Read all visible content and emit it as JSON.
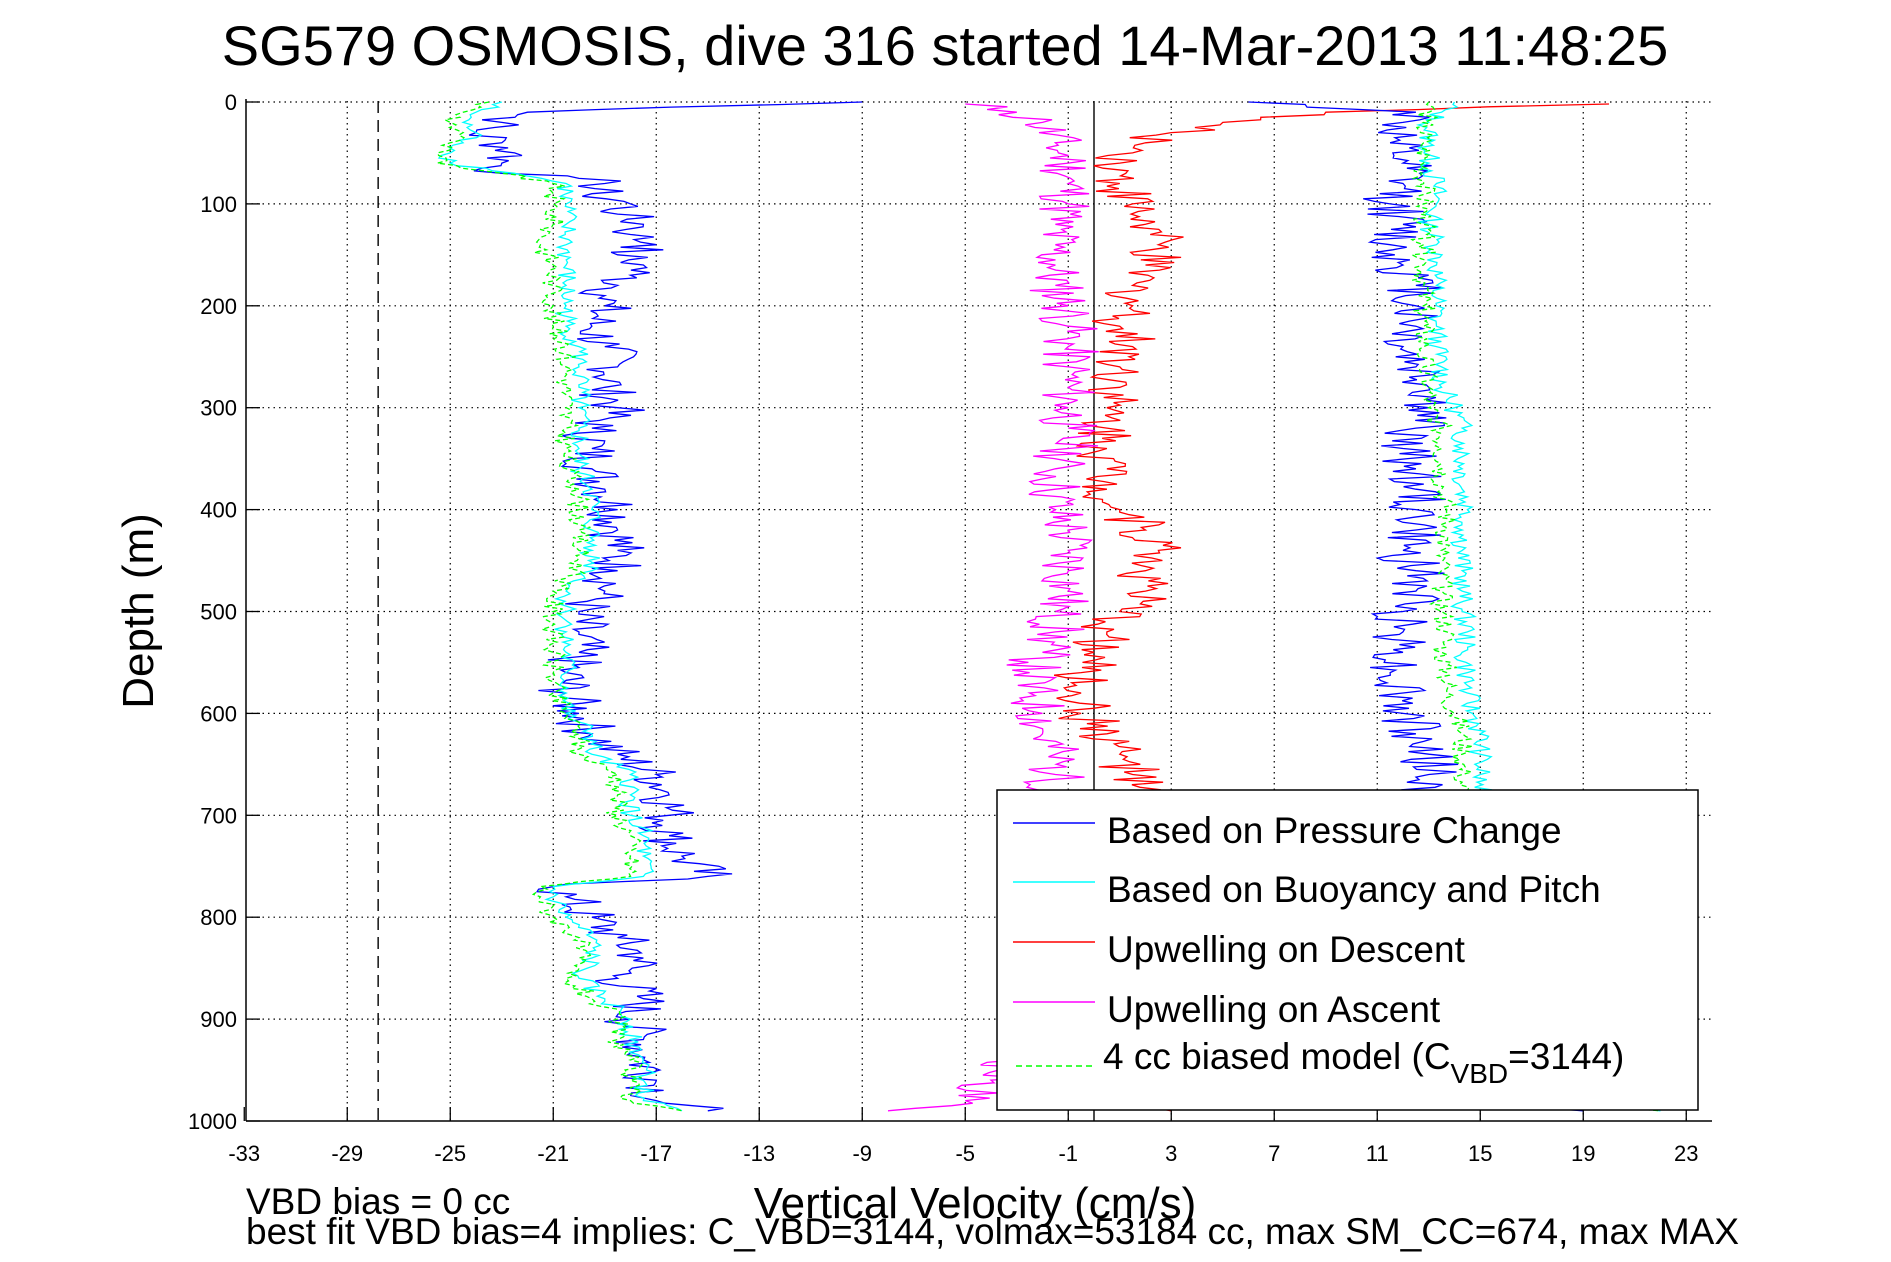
{
  "chart_data": {
    "type": "line",
    "title": "SG579 OSMOSIS, dive 316 started 14-Mar-2013 11:48:25",
    "xlabel": "Vertical Velocity (cm/s)",
    "ylabel": "Depth (m)",
    "xlim": [
      -33,
      24
    ],
    "ylim": [
      0,
      1000
    ],
    "y_reversed": true,
    "grid": true,
    "xticks": [
      -33,
      -29,
      -25,
      -21,
      -17,
      -13,
      -9,
      -5,
      -1,
      3,
      7,
      11,
      15,
      19,
      23
    ],
    "xtick_labels": [
      "-33",
      "-29",
      "-25",
      "-21",
      "-17",
      "-13",
      "-9",
      "-5",
      "-1",
      "3",
      "7",
      "11",
      "15",
      "19",
      "23"
    ],
    "yticks": [
      0,
      100,
      200,
      300,
      400,
      500,
      600,
      700,
      800,
      900,
      1000
    ],
    "ytick_labels": [
      "0",
      "100",
      "200",
      "300",
      "400",
      "500",
      "600",
      "700",
      "800",
      "900",
      "1000"
    ],
    "reference_lines": [
      {
        "name": "zero-line",
        "x": 0,
        "style": "solid"
      },
      {
        "name": "vbd-bias-line",
        "x": -27.8,
        "style": "dashed"
      }
    ],
    "legend": {
      "placement": "bottom-right",
      "entries": [
        {
          "label": "Based on Pressure Change",
          "color": "#0000ff",
          "style": "solid"
        },
        {
          "label": "Based on Buoyancy and Pitch",
          "color": "#00ffff",
          "style": "solid"
        },
        {
          "label": "Upwelling on Descent",
          "color": "#ff0000",
          "style": "solid"
        },
        {
          "label": "Upwelling on Ascent",
          "color": "#ff00ff",
          "style": "solid"
        },
        {
          "label_prefix": "4 cc biased model (C",
          "label_sub": "VBD",
          "label_suffix": "=3144)",
          "color": "#00ff00",
          "style": "dashed"
        }
      ]
    },
    "series": [
      {
        "name": "Based on Pressure Change (descent)",
        "color": "#0000ff",
        "depth": [
          0,
          10,
          20,
          30,
          40,
          50,
          60,
          70,
          75,
          80,
          90,
          100,
          110,
          120,
          130,
          140,
          150,
          160,
          170,
          180,
          190,
          200,
          220,
          240,
          260,
          280,
          300,
          320,
          340,
          360,
          380,
          400,
          420,
          440,
          460,
          480,
          500,
          520,
          540,
          560,
          580,
          600,
          620,
          640,
          660,
          680,
          700,
          720,
          740,
          760,
          770,
          780,
          800,
          820,
          840,
          860,
          880,
          900,
          920,
          940,
          960,
          980,
          990
        ],
        "velocity": [
          -9,
          -22,
          -23,
          -24,
          -23,
          -22.5,
          -23,
          -23,
          -20,
          -19,
          -19.5,
          -18,
          -18.5,
          -17.5,
          -18,
          -17,
          -18.5,
          -17.5,
          -18,
          -18.5,
          -19,
          -19,
          -19.5,
          -19,
          -18.5,
          -19,
          -18.5,
          -19.5,
          -19.5,
          -19.5,
          -19,
          -18.5,
          -18.5,
          -18.5,
          -18.5,
          -19,
          -20,
          -20,
          -20,
          -20.5,
          -20.5,
          -20,
          -19.5,
          -18.5,
          -17,
          -16.5,
          -16.5,
          -16.5,
          -16,
          -15,
          -21,
          -20.5,
          -19.5,
          -18.5,
          -17.5,
          -18.5,
          -17.5,
          -18,
          -17.5,
          -17.5,
          -17,
          -17,
          -15
        ]
      },
      {
        "name": "Based on Buoyancy and Pitch (descent)",
        "color": "#00ffff",
        "depth": [
          0,
          10,
          20,
          30,
          40,
          50,
          60,
          70,
          80,
          90,
          100,
          120,
          140,
          160,
          180,
          200,
          220,
          240,
          260,
          280,
          300,
          320,
          340,
          360,
          380,
          400,
          420,
          440,
          460,
          480,
          500,
          520,
          540,
          560,
          580,
          600,
          620,
          640,
          660,
          680,
          700,
          720,
          740,
          760,
          770,
          780,
          800,
          820,
          840,
          860,
          880,
          900,
          920,
          940,
          960,
          980,
          990
        ],
        "velocity": [
          -23,
          -24,
          -24.5,
          -24,
          -24.5,
          -25,
          -25,
          -22.5,
          -20.5,
          -20.5,
          -20.5,
          -20.5,
          -20.5,
          -20.5,
          -20.5,
          -20.5,
          -20.5,
          -20,
          -20,
          -20,
          -20,
          -20,
          -20,
          -20,
          -19.5,
          -19.5,
          -19.5,
          -19.5,
          -19.5,
          -20.5,
          -20.5,
          -20.5,
          -20.5,
          -20.5,
          -20.5,
          -20.5,
          -19.5,
          -19.5,
          -18,
          -18,
          -18,
          -17.5,
          -17.5,
          -17.5,
          -21,
          -21,
          -20.5,
          -19.5,
          -19.5,
          -20,
          -19,
          -18,
          -18,
          -17.5,
          -17.5,
          -17.5,
          -16
        ]
      },
      {
        "name": "4 cc biased model (descent)",
        "color": "#00ff00",
        "style": "dashed",
        "depth": [
          0,
          10,
          20,
          30,
          40,
          50,
          60,
          70,
          80,
          90,
          100,
          120,
          140,
          160,
          180,
          200,
          220,
          240,
          260,
          280,
          300,
          320,
          340,
          360,
          380,
          400,
          420,
          440,
          460,
          480,
          500,
          520,
          540,
          560,
          580,
          600,
          620,
          640,
          660,
          680,
          700,
          720,
          740,
          760,
          770,
          780,
          800,
          820,
          840,
          860,
          880,
          900,
          920,
          940,
          960,
          980,
          990
        ],
        "velocity": [
          -23.5,
          -24.5,
          -25,
          -24.5,
          -25,
          -25.5,
          -25.5,
          -23,
          -21,
          -21,
          -21,
          -21,
          -21.5,
          -21,
          -21,
          -21,
          -21,
          -20.5,
          -20.5,
          -20.5,
          -20.5,
          -20.5,
          -20.5,
          -20.5,
          -20,
          -20,
          -20,
          -20,
          -20,
          -21,
          -21,
          -21,
          -21,
          -21,
          -21,
          -20.5,
          -20,
          -20,
          -18.5,
          -18.5,
          -18.5,
          -18,
          -18,
          -18,
          -21.5,
          -21.5,
          -21,
          -20,
          -20,
          -20.5,
          -19.5,
          -18.5,
          -18.5,
          -18,
          -18,
          -18,
          -16
        ]
      },
      {
        "name": "Upwelling on Descent",
        "color": "#ff0000",
        "depth": [
          2,
          10,
          20,
          30,
          40,
          50,
          60,
          80,
          100,
          120,
          140,
          160,
          180,
          200,
          220,
          240,
          260,
          280,
          300,
          320,
          340,
          360,
          380,
          400,
          420,
          440,
          460,
          480,
          500,
          520,
          540,
          560,
          580,
          600,
          620,
          640,
          660,
          680,
          700,
          720,
          740,
          760,
          780,
          800,
          820,
          840,
          860,
          880,
          900,
          920,
          940,
          960,
          980,
          990
        ],
        "velocity": [
          20,
          9,
          5,
          3,
          2,
          1.5,
          1,
          1,
          1.5,
          2,
          2.5,
          2,
          1.5,
          1.5,
          1,
          1.5,
          1,
          1,
          0.5,
          0.5,
          0.5,
          0.5,
          0.5,
          1,
          2,
          2.5,
          2,
          2,
          1,
          0.5,
          0,
          -0.5,
          -0.5,
          -0.5,
          0.5,
          1,
          1.5,
          1.5,
          2,
          1.5,
          1,
          1,
          0.5,
          0,
          0.5,
          0.5,
          0.5,
          0,
          -0.5,
          0.5,
          0.5,
          1,
          2.5,
          3
        ]
      },
      {
        "name": "Upwelling on Ascent",
        "color": "#ff00ff",
        "depth": [
          2,
          10,
          20,
          40,
          60,
          80,
          100,
          120,
          140,
          160,
          180,
          200,
          220,
          240,
          260,
          280,
          300,
          320,
          340,
          360,
          380,
          400,
          420,
          440,
          460,
          480,
          500,
          520,
          540,
          560,
          580,
          600,
          620,
          640,
          660,
          680,
          700,
          720,
          740,
          760,
          780,
          800,
          820,
          840,
          860,
          880,
          900,
          920,
          940,
          960,
          980,
          990
        ],
        "velocity": [
          -5,
          -3,
          -2,
          -1.5,
          -1,
          -1,
          -1,
          -1.5,
          -1.5,
          -1.5,
          -1.5,
          -1,
          -1,
          -1,
          -1,
          -1,
          -1,
          -1,
          -1,
          -1.5,
          -1.5,
          -1.5,
          -1,
          -1,
          -1,
          -1,
          -1.5,
          -1.5,
          -2,
          -2.5,
          -2.5,
          -2,
          -2,
          -1.5,
          -1.5,
          -1.5,
          -2,
          -2,
          -1.5,
          -1.5,
          -1.5,
          -2,
          -1.5,
          -1.5,
          -2,
          -1.5,
          -1.5,
          -2,
          -3,
          -4,
          -5,
          -8
        ]
      },
      {
        "name": "Based on Pressure Change (ascent)",
        "color": "#0000ff",
        "depth": [
          0,
          10,
          20,
          40,
          60,
          80,
          100,
          120,
          140,
          160,
          180,
          200,
          220,
          240,
          260,
          280,
          300,
          320,
          340,
          360,
          380,
          400,
          420,
          440,
          460,
          480,
          500,
          520,
          540,
          560,
          580,
          600,
          620,
          640,
          660,
          680,
          700,
          720,
          740,
          760,
          780,
          800,
          820,
          840,
          860,
          880,
          900,
          920,
          940,
          960,
          980,
          990
        ],
        "velocity": [
          6,
          12.5,
          12,
          11.5,
          12,
          12,
          11.5,
          12,
          11.5,
          12,
          12.5,
          12.5,
          12.5,
          12,
          12.5,
          13,
          13,
          12.5,
          12,
          12.5,
          12.5,
          12.5,
          12.5,
          12,
          12.5,
          12.5,
          12,
          12,
          12,
          11.5,
          12,
          12,
          12.5,
          13,
          13,
          12.5,
          12.5,
          12.5,
          12,
          12,
          12,
          12,
          12.5,
          12.5,
          12.5,
          12,
          12,
          12.5,
          13,
          14,
          16,
          19
        ]
      },
      {
        "name": "Based on Buoyancy and Pitch (ascent)",
        "color": "#00ffff",
        "depth": [
          0,
          10,
          20,
          40,
          60,
          80,
          100,
          120,
          140,
          160,
          180,
          200,
          220,
          240,
          260,
          280,
          300,
          320,
          340,
          360,
          380,
          400,
          420,
          440,
          460,
          480,
          500,
          520,
          540,
          560,
          580,
          600,
          620,
          640,
          660,
          680,
          700,
          720,
          740,
          760,
          780,
          800,
          820,
          840,
          860,
          880,
          900,
          920,
          940,
          960,
          980,
          990
        ],
        "velocity": [
          14,
          13.5,
          13,
          13,
          13,
          13.3,
          13.3,
          13,
          13.3,
          13.3,
          13.3,
          13.3,
          13.3,
          13.3,
          13.5,
          13.5,
          14,
          14.3,
          14.3,
          14.3,
          14.3,
          14.5,
          14.3,
          14.3,
          14.3,
          14.3,
          14.3,
          14.5,
          14.3,
          14.5,
          14.5,
          14.7,
          15,
          15,
          15,
          15,
          15,
          15,
          15,
          15,
          15,
          15,
          15,
          15,
          15,
          15,
          15,
          15,
          15,
          15.5,
          17,
          22
        ]
      },
      {
        "name": "4 cc biased model (ascent)",
        "color": "#00ff00",
        "style": "dashed",
        "depth": [
          0,
          10,
          20,
          40,
          60,
          80,
          100,
          120,
          140,
          160,
          180,
          200,
          220,
          240,
          260,
          280,
          300,
          320,
          340,
          360,
          380,
          400,
          420,
          440,
          460,
          480,
          500,
          520,
          540,
          560,
          580,
          600,
          620,
          640,
          660,
          680,
          700,
          720,
          740,
          760,
          780,
          800,
          820,
          840,
          860,
          880,
          900,
          920,
          940,
          960,
          980,
          990
        ],
        "velocity": [
          13,
          13,
          12.8,
          12.8,
          12.8,
          12.8,
          12.8,
          12.8,
          12.8,
          12.8,
          12.8,
          12.8,
          12.8,
          12.8,
          12.8,
          13,
          13,
          13.5,
          13.5,
          13.5,
          13.5,
          13.7,
          13.7,
          13.5,
          13.5,
          13.5,
          13.5,
          13.7,
          13.5,
          13.7,
          13.7,
          14,
          14.3,
          14.3,
          14.3,
          14.3,
          14.3,
          14.3,
          14.3,
          14.3,
          14.3,
          14.3,
          14.3,
          14.3,
          14.3,
          14.3,
          14.3,
          14.3,
          14.3,
          15,
          17,
          22
        ]
      }
    ],
    "annotations": [
      {
        "name": "vbd-bias-note",
        "text": "VBD bias = 0 cc"
      },
      {
        "name": "best-fit-note",
        "text": "best fit VBD bias=4 implies: C_VBD=3144, volmax=53184 cc, max SM_CC=674, max MAX"
      }
    ]
  }
}
